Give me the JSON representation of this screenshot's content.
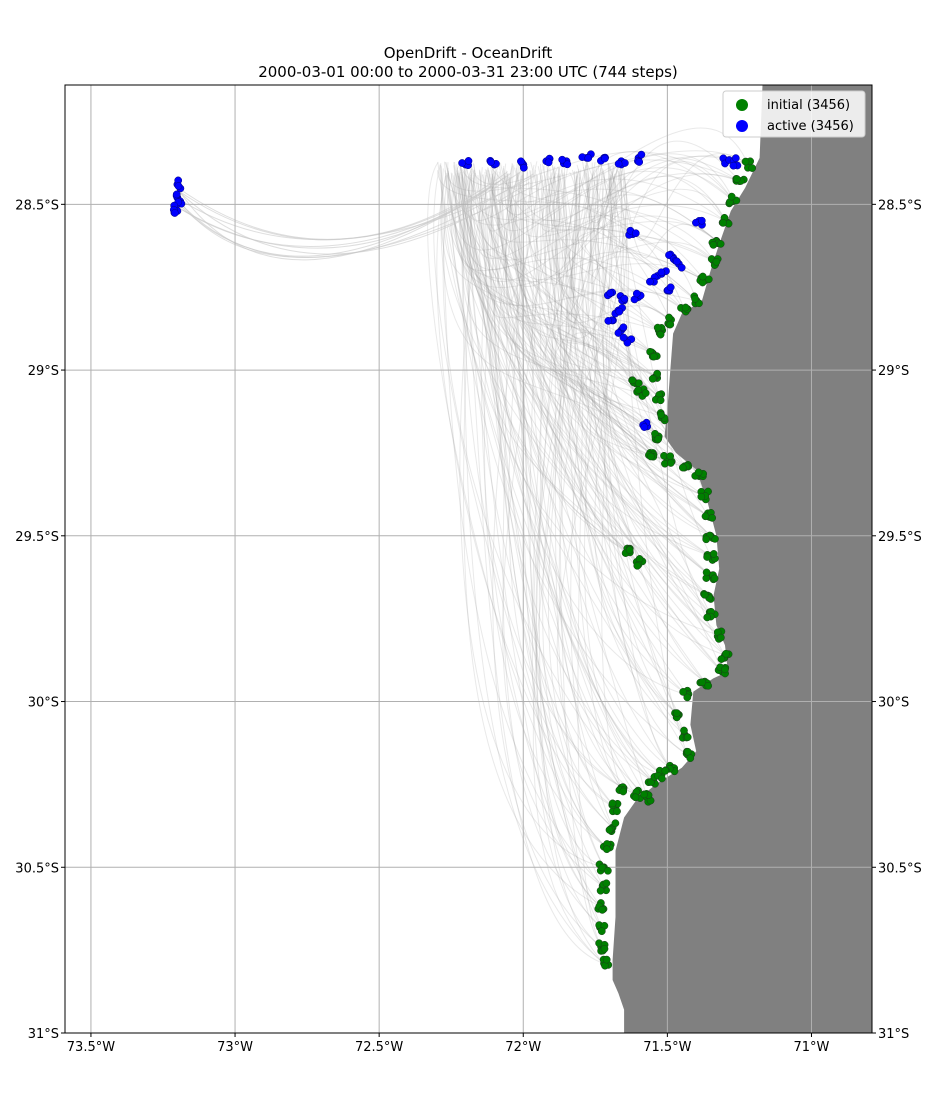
{
  "title_line1": "OpenDrift - OceanDrift",
  "title_line2": "2000-03-01 00:00 to 2000-03-31 23:00 UTC (744 steps)",
  "colors": {
    "initial": "#008000",
    "active": "#0000ff",
    "land": "#808080",
    "trajectory": "#9a9a9a",
    "grid": "#b0b0b0",
    "legend_bg": "#ffffff"
  },
  "legend": [
    {
      "label": "initial (3456)",
      "color": "#008000"
    },
    {
      "label": "active (3456)",
      "color": "#0000ff"
    }
  ],
  "chart_data": {
    "type": "scatter",
    "title": "OpenDrift - OceanDrift",
    "subtitle": "2000-03-01 00:00 to 2000-03-31 23:00 UTC (744 steps)",
    "xlim": [
      -73.59,
      -70.79
    ],
    "ylim": [
      -31.0,
      -28.14
    ],
    "x_ticks": [
      {
        "value": -73.5,
        "label": "73.5°W"
      },
      {
        "value": -73.0,
        "label": "73°W"
      },
      {
        "value": -72.5,
        "label": "72.5°W"
      },
      {
        "value": -72.0,
        "label": "72°W"
      },
      {
        "value": -71.5,
        "label": "71.5°W"
      },
      {
        "value": -71.0,
        "label": "71°W"
      }
    ],
    "y_ticks": [
      {
        "value": -28.5,
        "label": "28.5°S"
      },
      {
        "value": -29.0,
        "label": "29°S"
      },
      {
        "value": -29.5,
        "label": "29.5°S"
      },
      {
        "value": -30.0,
        "label": "30°S"
      },
      {
        "value": -30.5,
        "label": "30.5°S"
      },
      {
        "value": -31.0,
        "label": "31°S"
      }
    ],
    "grid": true,
    "legend_position": "top-right",
    "coastline": [
      [
        -71.17,
        -28.14
      ],
      [
        -71.18,
        -28.36
      ],
      [
        -71.23,
        -28.45
      ],
      [
        -71.28,
        -28.52
      ],
      [
        -71.32,
        -28.62
      ],
      [
        -71.35,
        -28.7
      ],
      [
        -71.38,
        -28.79
      ],
      [
        -71.45,
        -28.83
      ],
      [
        -71.48,
        -28.89
      ],
      [
        -71.49,
        -29.0
      ],
      [
        -71.5,
        -29.12
      ],
      [
        -71.51,
        -29.2
      ],
      [
        -71.47,
        -29.25
      ],
      [
        -71.4,
        -29.3
      ],
      [
        -71.36,
        -29.4
      ],
      [
        -71.33,
        -29.5
      ],
      [
        -71.32,
        -29.6
      ],
      [
        -71.34,
        -29.68
      ],
      [
        -71.33,
        -29.77
      ],
      [
        -71.3,
        -29.83
      ],
      [
        -71.29,
        -29.91
      ],
      [
        -71.34,
        -29.93
      ],
      [
        -71.41,
        -29.97
      ],
      [
        -71.42,
        -30.07
      ],
      [
        -71.4,
        -30.15
      ],
      [
        -71.45,
        -30.2
      ],
      [
        -71.54,
        -30.25
      ],
      [
        -71.61,
        -30.3
      ],
      [
        -71.65,
        -30.35
      ],
      [
        -71.68,
        -30.45
      ],
      [
        -71.68,
        -30.55
      ],
      [
        -71.68,
        -30.65
      ],
      [
        -71.69,
        -30.78
      ],
      [
        -71.69,
        -30.84
      ],
      [
        -71.67,
        -30.88
      ],
      [
        -71.65,
        -30.93
      ],
      [
        -71.65,
        -31.0
      ]
    ],
    "series": [
      {
        "name": "initial (3456)",
        "color": "#008000",
        "points": [
          [
            -71.22,
            -28.38
          ],
          [
            -71.25,
            -28.43
          ],
          [
            -71.27,
            -28.49
          ],
          [
            -71.3,
            -28.55
          ],
          [
            -71.33,
            -28.61
          ],
          [
            -71.34,
            -28.67
          ],
          [
            -71.37,
            -28.73
          ],
          [
            -71.4,
            -28.79
          ],
          [
            -71.44,
            -28.82
          ],
          [
            -71.49,
            -28.85
          ],
          [
            -71.53,
            -28.88
          ],
          [
            -71.55,
            -28.95
          ],
          [
            -71.54,
            -29.02
          ],
          [
            -71.53,
            -29.08
          ],
          [
            -71.52,
            -29.14
          ],
          [
            -71.53,
            -29.2
          ],
          [
            -71.56,
            -29.25
          ],
          [
            -71.5,
            -29.27
          ],
          [
            -71.44,
            -29.29
          ],
          [
            -71.39,
            -29.32
          ],
          [
            -71.37,
            -29.38
          ],
          [
            -71.36,
            -29.44
          ],
          [
            -71.35,
            -29.5
          ],
          [
            -71.35,
            -29.56
          ],
          [
            -71.35,
            -29.62
          ],
          [
            -71.36,
            -29.68
          ],
          [
            -71.35,
            -29.74
          ],
          [
            -71.32,
            -29.8
          ],
          [
            -71.3,
            -29.86
          ],
          [
            -71.31,
            -29.91
          ],
          [
            -71.37,
            -29.94
          ],
          [
            -71.43,
            -29.98
          ],
          [
            -71.46,
            -30.04
          ],
          [
            -71.44,
            -30.1
          ],
          [
            -71.43,
            -30.16
          ],
          [
            -71.49,
            -30.2
          ],
          [
            -71.55,
            -30.24
          ],
          [
            -71.61,
            -30.28
          ],
          [
            -71.66,
            -30.26
          ],
          [
            -71.68,
            -30.32
          ],
          [
            -71.69,
            -30.38
          ],
          [
            -71.71,
            -30.44
          ],
          [
            -71.72,
            -30.5
          ],
          [
            -71.72,
            -30.56
          ],
          [
            -71.73,
            -30.62
          ],
          [
            -71.73,
            -30.68
          ],
          [
            -71.73,
            -30.74
          ],
          [
            -71.72,
            -30.79
          ],
          [
            -71.61,
            -29.04
          ],
          [
            -71.59,
            -29.07
          ],
          [
            -71.63,
            -29.55
          ],
          [
            -71.6,
            -29.58
          ],
          [
            -71.57,
            -30.29
          ],
          [
            -71.52,
            -30.22
          ]
        ]
      },
      {
        "name": "active (3456)",
        "color": "#0000ff",
        "points": [
          [
            -72.2,
            -28.38
          ],
          [
            -72.1,
            -28.38
          ],
          [
            -72.0,
            -28.38
          ],
          [
            -71.92,
            -28.37
          ],
          [
            -71.85,
            -28.37
          ],
          [
            -71.78,
            -28.36
          ],
          [
            -71.72,
            -28.36
          ],
          [
            -71.66,
            -28.37
          ],
          [
            -71.6,
            -28.36
          ],
          [
            -73.2,
            -28.44
          ],
          [
            -73.2,
            -28.48
          ],
          [
            -73.2,
            -28.5
          ],
          [
            -73.2,
            -28.52
          ],
          [
            -71.3,
            -28.37
          ],
          [
            -71.27,
            -28.37
          ],
          [
            -71.39,
            -28.55
          ],
          [
            -71.62,
            -28.59
          ],
          [
            -71.48,
            -28.66
          ],
          [
            -71.46,
            -28.68
          ],
          [
            -71.52,
            -28.71
          ],
          [
            -71.55,
            -28.73
          ],
          [
            -71.5,
            -28.76
          ],
          [
            -71.6,
            -28.78
          ],
          [
            -71.65,
            -28.79
          ],
          [
            -71.7,
            -28.77
          ],
          [
            -71.67,
            -28.82
          ],
          [
            -71.69,
            -28.85
          ],
          [
            -71.66,
            -28.88
          ],
          [
            -71.64,
            -28.91
          ],
          [
            -71.57,
            -29.17
          ]
        ]
      }
    ]
  }
}
